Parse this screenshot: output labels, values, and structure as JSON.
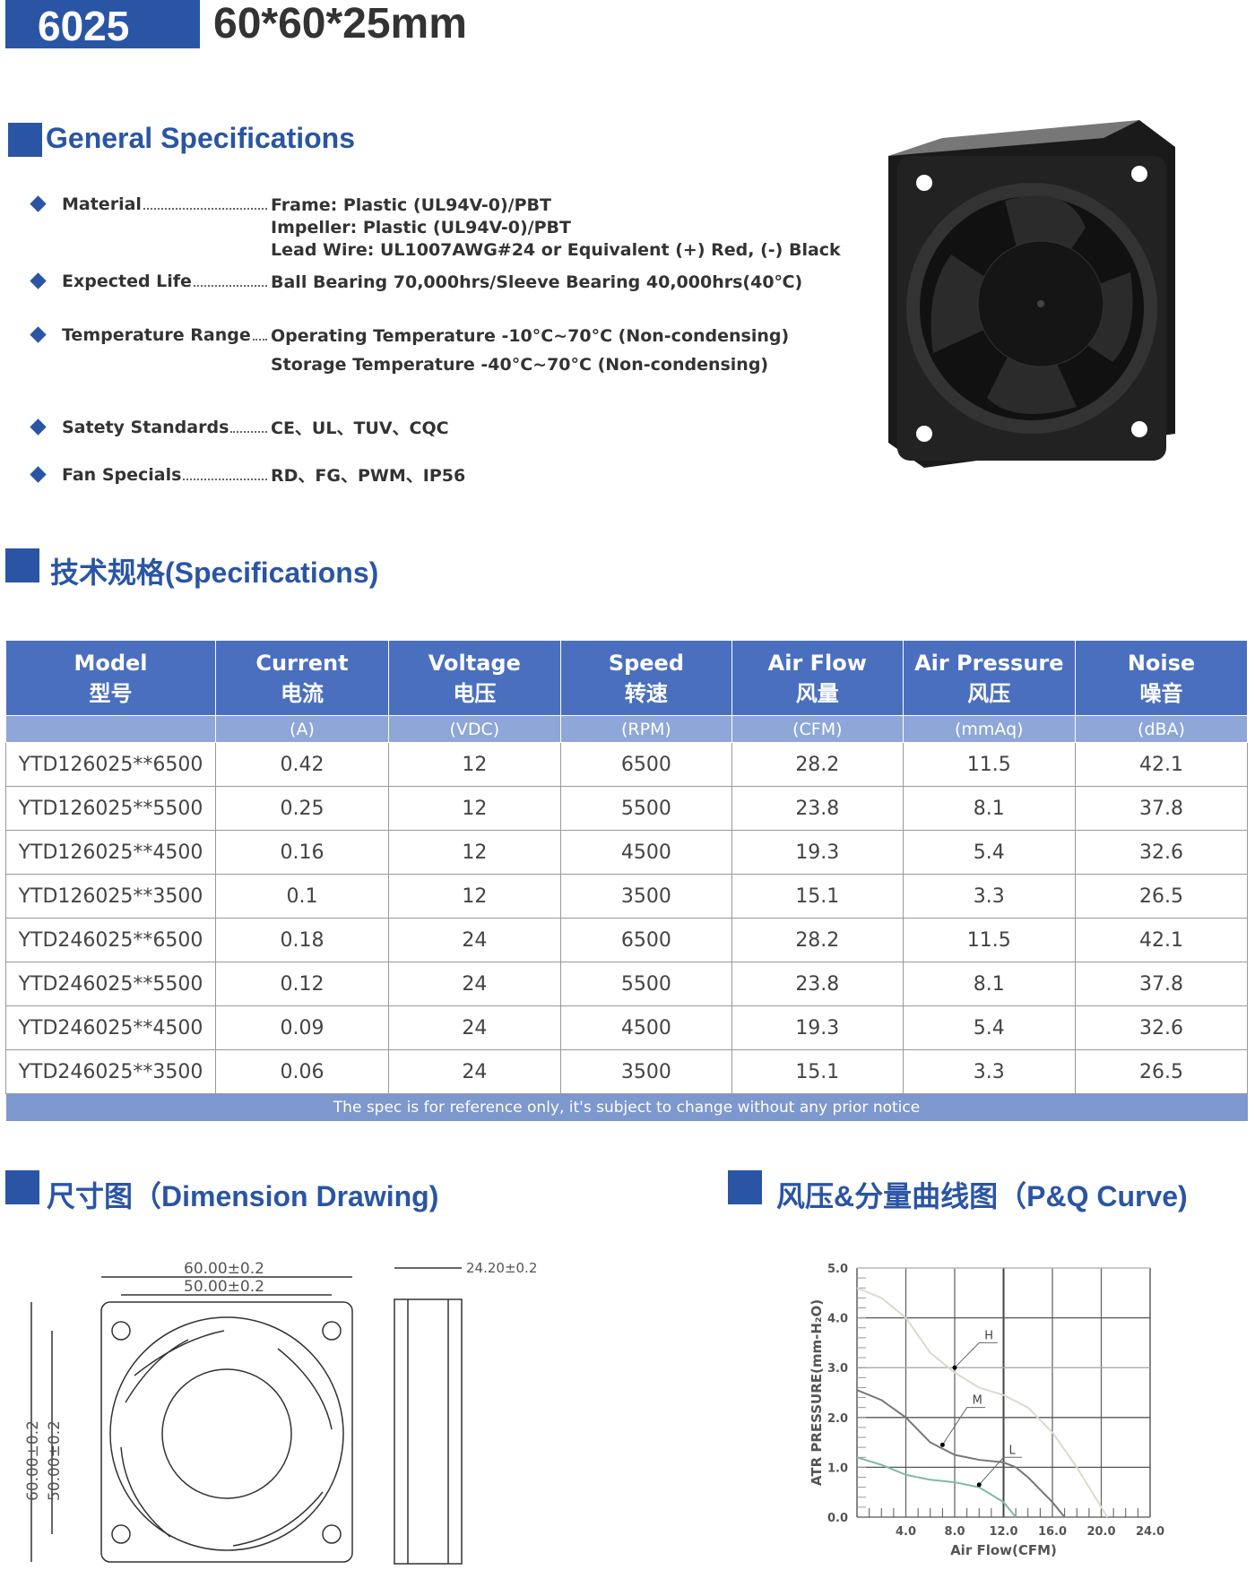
{
  "header": {
    "code": "6025",
    "dimensions": "60*60*25mm"
  },
  "general": {
    "title": "General Specifications",
    "items": [
      {
        "label": "Material",
        "values": [
          "Frame: Plastic (UL94V-0)/PBT",
          "Impeller: Plastic (UL94V-0)/PBT",
          "Lead Wire: UL1007AWG#24 or Equivalent (+) Red, (-) Black"
        ]
      },
      {
        "label": "Expected Life",
        "values": [
          "Ball Bearing 70,000hrs/Sleeve Bearing 40,000hrs(40℃)"
        ]
      },
      {
        "label": "Temperature Range",
        "values": [
          "Operating Temperature -10°C~70°C (Non-condensing)",
          "Storage Temperature -40°C~70°C (Non-condensing)"
        ]
      },
      {
        "label": "Satety Standards",
        "values": [
          "CE、UL、TUV、CQC"
        ]
      },
      {
        "label": "Fan Specials",
        "values": [
          "RD、FG、PWM、IP56"
        ]
      }
    ]
  },
  "specs": {
    "title": "技术规格(Specifications)",
    "columns": [
      {
        "en": "Model",
        "zh": "型号",
        "unit": ""
      },
      {
        "en": "Current",
        "zh": "电流",
        "unit": "(A)"
      },
      {
        "en": "Voltage",
        "zh": "电压",
        "unit": "(VDC)"
      },
      {
        "en": "Speed",
        "zh": "转速",
        "unit": "(RPM)"
      },
      {
        "en": "Air Flow",
        "zh": "风量",
        "unit": "(CFM)"
      },
      {
        "en": "Air Pressure",
        "zh": "风压",
        "unit": "(mmAq)"
      },
      {
        "en": "Noise",
        "zh": "噪音",
        "unit": "(dBA)"
      }
    ],
    "rows": [
      [
        "YTD126025**6500",
        "0.42",
        "12",
        "6500",
        "28.2",
        "11.5",
        "42.1"
      ],
      [
        "YTD126025**5500",
        "0.25",
        "12",
        "5500",
        "23.8",
        "8.1",
        "37.8"
      ],
      [
        "YTD126025**4500",
        "0.16",
        "12",
        "4500",
        "19.3",
        "5.4",
        "32.6"
      ],
      [
        "YTD126025**3500",
        "0.1",
        "12",
        "3500",
        "15.1",
        "3.3",
        "26.5"
      ],
      [
        "YTD246025**6500",
        "0.18",
        "24",
        "6500",
        "28.2",
        "11.5",
        "42.1"
      ],
      [
        "YTD246025**5500",
        "0.12",
        "24",
        "5500",
        "23.8",
        "8.1",
        "37.8"
      ],
      [
        "YTD246025**4500",
        "0.09",
        "24",
        "4500",
        "19.3",
        "5.4",
        "32.6"
      ],
      [
        "YTD246025**3500",
        "0.06",
        "24",
        "3500",
        "15.1",
        "3.3",
        "26.5"
      ]
    ],
    "footnote": "The spec is for reference only, it's subject to change without any prior notice"
  },
  "dimension": {
    "title": "尺寸图（Dimension Drawing)",
    "outer_w": "60.00±0.2",
    "inner_w": "50.00±0.2",
    "outer_h": "60.00±0.2",
    "inner_h": "50.00±0.2",
    "depth": "24.20±0.2"
  },
  "curve": {
    "title": "风压&分量曲线图（P&Q Curve)"
  },
  "chart_data": {
    "type": "line",
    "xlabel": "Air Flow(CFM)",
    "ylabel": "ATR PRESSURE(mm-H₂O)",
    "xlim": [
      0,
      24
    ],
    "ylim": [
      0,
      5
    ],
    "xticks": [
      "4.0",
      "8.0",
      "12.0",
      "16.0",
      "20.0",
      "24.0"
    ],
    "yticks": [
      "0.0",
      "1.0",
      "2.0",
      "3.0",
      "4.0",
      "5.0"
    ],
    "grid": true,
    "series": [
      {
        "name": "H",
        "color": "#d8dccc",
        "x": [
          0,
          2,
          4,
          6,
          8,
          10,
          12,
          14,
          16,
          18,
          20,
          20.5
        ],
        "y": [
          4.6,
          4.4,
          4.0,
          3.3,
          2.9,
          2.6,
          2.45,
          2.2,
          1.7,
          1.0,
          0.2,
          0
        ]
      },
      {
        "name": "M",
        "color": "#777777",
        "x": [
          0,
          2,
          4,
          6,
          8,
          10,
          12,
          13,
          14,
          16,
          17
        ],
        "y": [
          2.55,
          2.35,
          2.0,
          1.5,
          1.25,
          1.15,
          1.1,
          1.0,
          0.8,
          0.3,
          0
        ]
      },
      {
        "name": "L",
        "color": "#7fb8a8",
        "x": [
          0,
          2,
          4,
          6,
          8,
          10,
          12,
          13
        ],
        "y": [
          1.2,
          1.05,
          0.85,
          0.75,
          0.7,
          0.6,
          0.3,
          0
        ]
      }
    ]
  }
}
